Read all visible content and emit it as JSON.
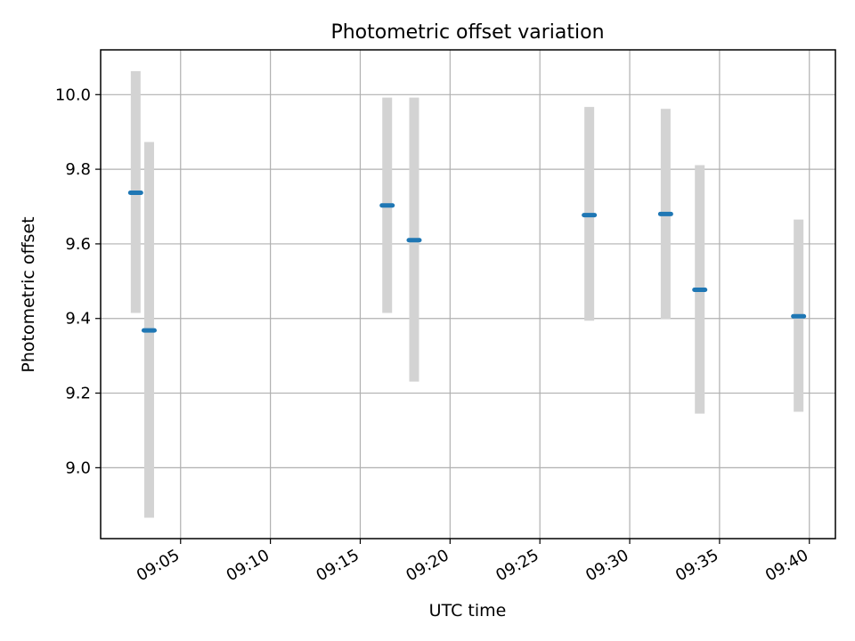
{
  "chart_data": {
    "type": "scatter",
    "title": "Photometric offset variation",
    "xlabel": "UTC time",
    "ylabel": "Photometric offset",
    "x_ticks": [
      "09:05",
      "09:10",
      "09:15",
      "09:20",
      "09:25",
      "09:30",
      "09:35",
      "09:40"
    ],
    "x_tick_minutes": [
      5,
      10,
      15,
      20,
      25,
      30,
      35,
      40
    ],
    "y_ticks": [
      "9.0",
      "9.2",
      "9.4",
      "9.6",
      "9.8",
      "10.0"
    ],
    "y_tick_values": [
      9.0,
      9.2,
      9.4,
      9.6,
      9.8,
      10.0
    ],
    "xlim": [
      "09:00:33",
      "09:41:27"
    ],
    "ylim": [
      8.81,
      10.12
    ],
    "grid": true,
    "marker_color": "#1f77b4",
    "errorbar_color": "#d3d3d3",
    "points": [
      {
        "time": "09:02:30",
        "y": 9.737,
        "y_low": 9.415,
        "y_high": 10.063
      },
      {
        "time": "09:03:15",
        "y": 9.368,
        "y_low": 8.866,
        "y_high": 9.873
      },
      {
        "time": "09:16:30",
        "y": 9.703,
        "y_low": 9.415,
        "y_high": 9.992
      },
      {
        "time": "09:18:00",
        "y": 9.61,
        "y_low": 9.231,
        "y_high": 9.992
      },
      {
        "time": "09:27:45",
        "y": 9.677,
        "y_low": 9.394,
        "y_high": 9.967
      },
      {
        "time": "09:32:00",
        "y": 9.68,
        "y_low": 9.399,
        "y_high": 9.962
      },
      {
        "time": "09:33:54",
        "y": 9.477,
        "y_low": 9.145,
        "y_high": 9.811
      },
      {
        "time": "09:39:24",
        "y": 9.406,
        "y_low": 9.15,
        "y_high": 9.665
      }
    ]
  }
}
